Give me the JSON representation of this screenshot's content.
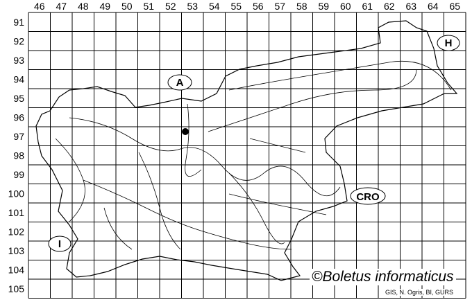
{
  "map": {
    "column_labels": [
      "46",
      "47",
      "48",
      "49",
      "50",
      "51",
      "52",
      "53",
      "54",
      "55",
      "56",
      "57",
      "58",
      "59",
      "60",
      "61",
      "62",
      "63",
      "64",
      "65"
    ],
    "row_labels": [
      "91",
      "92",
      "93",
      "94",
      "95",
      "96",
      "97",
      "98",
      "99",
      "100",
      "101",
      "102",
      "103",
      "104",
      "105"
    ],
    "country_labels": {
      "austria": "A",
      "hungary": "H",
      "croatia": "CRO",
      "italy": "I"
    },
    "record_marker": "filled-dot",
    "watermark": "©Boletus informaticus",
    "credit": "GIS, N. Ogris, BI, GURS"
  }
}
